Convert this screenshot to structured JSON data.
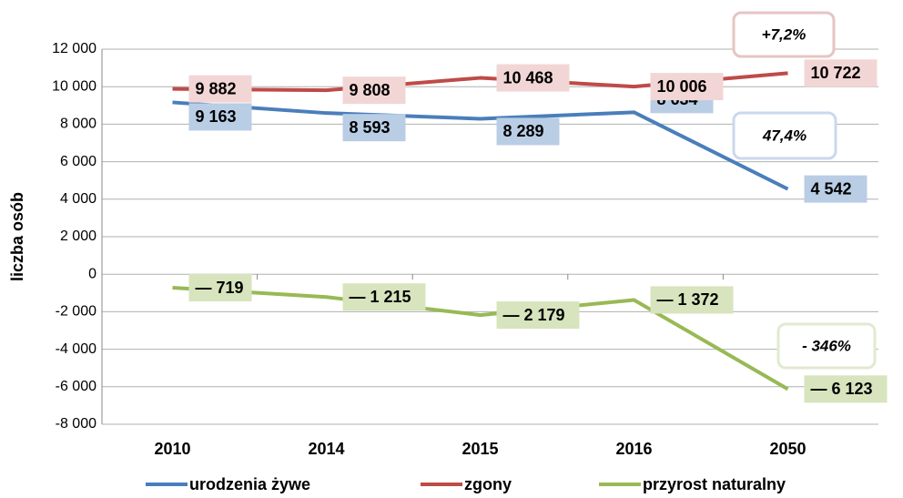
{
  "chart_data": {
    "type": "line",
    "y_label": "liczba osób",
    "categories": [
      "2010",
      "2014",
      "2015",
      "2016",
      "2050"
    ],
    "series": [
      {
        "name": "urodzenia żywe",
        "color": "#4a7ebb",
        "label_bg": "#b9cde5",
        "values": [
          9163,
          8593,
          8289,
          8634,
          4542
        ],
        "value_labels": [
          "9 163",
          "8 593",
          "8 289",
          "8 634",
          "4 542"
        ]
      },
      {
        "name": "zgony",
        "color": "#be4b48",
        "label_bg": "#f2d6d5",
        "values": [
          9882,
          9808,
          10468,
          10006,
          10722
        ],
        "value_labels": [
          "9 882",
          "9 808",
          "10 468",
          "10 006",
          "10 722"
        ]
      },
      {
        "name": "przyrost naturalny",
        "color": "#98b954",
        "label_bg": "#d7e4bd",
        "values": [
          -719,
          -1215,
          -2179,
          -1372,
          -6123
        ],
        "value_labels": [
          "— 719",
          "— 1 215",
          "— 2 179",
          "— 1 372",
          "— 6 123"
        ]
      }
    ],
    "annotations": [
      {
        "text": "+7,2%",
        "color": "#e6c4c3"
      },
      {
        "text": "47,4%",
        "color": "#c9d9ec"
      },
      {
        "text": "- 346%",
        "color": "#e0ead0"
      }
    ],
    "ylim": [
      -8000,
      12000
    ],
    "yticks": [
      {
        "value": -8000,
        "label": "-8 000"
      },
      {
        "value": -6000,
        "label": "-6 000"
      },
      {
        "value": -4000,
        "label": "-4 000"
      },
      {
        "value": -2000,
        "label": "-2 000"
      },
      0,
      {
        "value": 2000,
        "label": "2 000"
      },
      {
        "value": 4000,
        "label": "4 000"
      },
      {
        "value": 6000,
        "label": "6 000"
      },
      {
        "value": 8000,
        "label": "8 000"
      },
      {
        "value": 10000,
        "label": "10 000"
      },
      {
        "value": 12000,
        "label": "12 000"
      }
    ],
    "grid": true,
    "legend": "bottom"
  }
}
